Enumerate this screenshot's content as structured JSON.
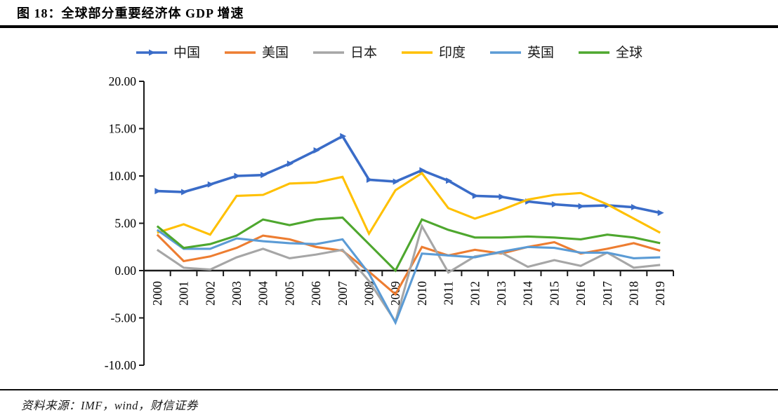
{
  "figure": {
    "title": "图 18：全球部分重要经济体 GDP 增速",
    "source": "资料来源：IMF，wind，财信证券"
  },
  "chart_data": {
    "type": "line",
    "title": "全球部分重要经济体GDP增速",
    "x": [
      "2000",
      "2001",
      "2002",
      "2003",
      "2004",
      "2005",
      "2006",
      "2007",
      "2008",
      "2009",
      "2010",
      "2011",
      "2012",
      "2013",
      "2014",
      "2015",
      "2016",
      "2017",
      "2018",
      "2019"
    ],
    "xlabel": "",
    "ylabel": "",
    "ylim": [
      -10,
      20
    ],
    "y_ticks": [
      20,
      15,
      10,
      5,
      0,
      -5,
      -10
    ],
    "y_tick_labels": [
      "20.00",
      "15.00",
      "10.00",
      "5.00",
      "0.00",
      "-5.00",
      "-10.00"
    ],
    "grid": false,
    "legend_position": "top",
    "series": [
      {
        "name": "中国",
        "color": "#3A6CC8",
        "marker": "triangle-right",
        "values": [
          8.4,
          8.3,
          9.1,
          10.0,
          10.1,
          11.3,
          12.7,
          14.2,
          9.6,
          9.4,
          10.6,
          9.5,
          7.9,
          7.8,
          7.3,
          7.0,
          6.8,
          6.9,
          6.7,
          6.1
        ]
      },
      {
        "name": "美国",
        "color": "#ED7D31",
        "marker": "none",
        "values": [
          3.8,
          1.0,
          1.5,
          2.4,
          3.7,
          3.3,
          2.5,
          2.1,
          -0.1,
          -2.5,
          2.5,
          1.6,
          2.2,
          1.8,
          2.5,
          3.0,
          1.8,
          2.3,
          2.9,
          2.1
        ]
      },
      {
        "name": "日本",
        "color": "#A6A6A6",
        "marker": "none",
        "values": [
          2.2,
          0.3,
          0.1,
          1.4,
          2.3,
          1.3,
          1.7,
          2.2,
          -1.1,
          -5.4,
          4.7,
          -0.2,
          1.5,
          1.9,
          0.4,
          1.1,
          0.5,
          1.9,
          0.3,
          0.6
        ]
      },
      {
        "name": "印度",
        "color": "#FFC000",
        "marker": "none",
        "values": [
          4.0,
          4.9,
          3.8,
          7.9,
          8.0,
          9.2,
          9.3,
          9.9,
          3.9,
          8.5,
          10.3,
          6.6,
          5.5,
          6.4,
          7.5,
          8.0,
          8.2,
          7.0,
          5.5,
          4.0
        ]
      },
      {
        "name": "英国",
        "color": "#5B9BD5",
        "marker": "none",
        "values": [
          4.3,
          2.3,
          2.3,
          3.4,
          3.1,
          2.9,
          2.8,
          3.3,
          -0.3,
          -5.5,
          1.8,
          1.6,
          1.4,
          2.0,
          2.5,
          2.4,
          1.9,
          1.9,
          1.3,
          1.4
        ]
      },
      {
        "name": "全球",
        "color": "#4EA72E",
        "marker": "none",
        "values": [
          4.7,
          2.4,
          2.8,
          3.7,
          5.4,
          4.8,
          5.4,
          5.6,
          2.8,
          0.0,
          5.4,
          4.3,
          3.5,
          3.5,
          3.6,
          3.5,
          3.3,
          3.8,
          3.5,
          2.9
        ]
      }
    ]
  }
}
